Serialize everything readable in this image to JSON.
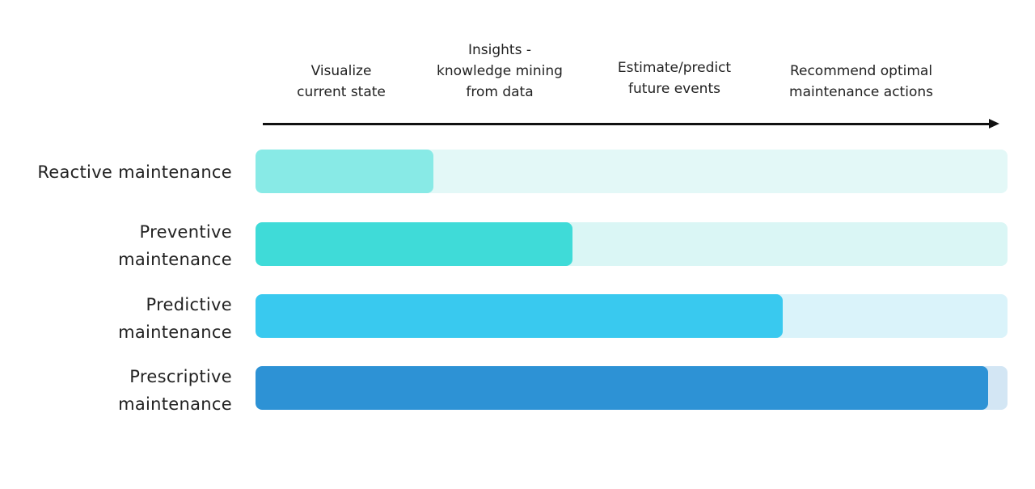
{
  "stages": [
    {
      "label": "Visualize\ncurrent state"
    },
    {
      "label": "Insights -\nknowledge mining\nfrom data"
    },
    {
      "label": "Estimate/predict\nfuture events"
    },
    {
      "label": "Recommend optimal\nmaintenance actions"
    }
  ],
  "rows": [
    {
      "label": "Reactive maintenance",
      "level": 0.237,
      "fill_color": "#88EAE6",
      "track_color": "#E3F8F7"
    },
    {
      "label": "Preventive\nmaintenance",
      "level": 0.421,
      "fill_color": "#3FDBD8",
      "track_color": "#DAF6F5"
    },
    {
      "label": "Predictive\nmaintenance",
      "level": 0.701,
      "fill_color": "#39C9EF",
      "track_color": "#DAF3FA"
    },
    {
      "label": "Prescriptive\nmaintenance",
      "level": 0.974,
      "fill_color": "#2D92D5",
      "track_color": "#D3E6F4"
    }
  ],
  "colors": {
    "axis": "#111111",
    "text": "#222222"
  }
}
